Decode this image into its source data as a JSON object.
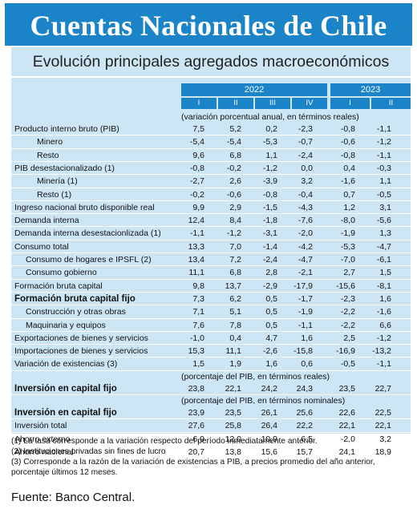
{
  "title": "Cuentas Nacionales de Chile",
  "subtitle": "Evolución principales agregados macroeconómicos",
  "years": [
    {
      "label": "2022",
      "quarters": [
        "I",
        "II",
        "III",
        "IV"
      ]
    },
    {
      "label": "2023",
      "quarters": [
        "I",
        "II"
      ]
    }
  ],
  "sections": [
    {
      "unit": "(variación porcentual anual, en términos reales)",
      "rows": [
        {
          "label": "Producto interno bruto (PIB)",
          "indent": 0,
          "bold": false,
          "values": [
            "7,5",
            "5,2",
            "0,2",
            "-2,3",
            "-0,8",
            "-1,1"
          ]
        },
        {
          "label": "Minero",
          "indent": 2,
          "bold": false,
          "values": [
            "-5,4",
            "-5,4",
            "-5,3",
            "-0,7",
            "-0,6",
            "-1,2"
          ]
        },
        {
          "label": "Resto",
          "indent": 2,
          "bold": false,
          "values": [
            "9,6",
            "6,8",
            "1,1",
            "-2,4",
            "-0,8",
            "-1,1"
          ]
        },
        {
          "label": "PIB desestacionalizado (1)",
          "indent": 0,
          "bold": false,
          "values": [
            "-0,8",
            "-0,2",
            "-1,2",
            "0,0",
            "0,4",
            "-0,3"
          ]
        },
        {
          "label": "Minería (1)",
          "indent": 2,
          "bold": false,
          "values": [
            "-2,7",
            "2,6",
            "-3,9",
            "3,2",
            "-1,6",
            "1,1"
          ]
        },
        {
          "label": "Resto (1)",
          "indent": 2,
          "bold": false,
          "values": [
            "-0,2",
            "-0,6",
            "-0,8",
            "-0,4",
            "0,7",
            "-0,5"
          ]
        },
        {
          "label": "Ingreso nacional bruto disponible real",
          "indent": 0,
          "bold": false,
          "values": [
            "9,9",
            "2,9",
            "-1,5",
            "-4,3",
            "1,2",
            "3,1"
          ]
        },
        {
          "label": "Demanda interna",
          "indent": 0,
          "bold": false,
          "values": [
            "12,4",
            "8,4",
            "-1,8",
            "-7,6",
            "-8,0",
            "-5,6"
          ]
        },
        {
          "label": "Demanda interna desestacionlizada (1)",
          "indent": 0,
          "bold": false,
          "values": [
            "-1,1",
            "-1,2",
            "-3,1",
            "-2,0",
            "-1,9",
            "1,3"
          ]
        },
        {
          "label": "Consumo total",
          "indent": 0,
          "bold": false,
          "values": [
            "13,3",
            "7,0",
            "-1,4",
            "-4,2",
            "-5,3",
            "-4,7"
          ]
        },
        {
          "label": "Consumo de hogares e IPSFL (2)",
          "indent": 1,
          "bold": false,
          "values": [
            "13,4",
            "7,2",
            "-2,4",
            "-4,7",
            "-7,0",
            "-6,1"
          ]
        },
        {
          "label": "Consumo gobierno",
          "indent": 1,
          "bold": false,
          "values": [
            "11,1",
            "6,8",
            "2,8",
            "-2,1",
            "2,7",
            "1,5"
          ]
        },
        {
          "label": "Formación bruta capital",
          "indent": 0,
          "bold": false,
          "values": [
            "9,8",
            "13,7",
            "-2,9",
            "-17,9",
            "-15,6",
            "-8,1"
          ]
        },
        {
          "label": "Formación bruta capital fijo",
          "indent": 0,
          "bold": true,
          "values": [
            "7,3",
            "6,2",
            "0,5",
            "-1,7",
            "-2,3",
            "1,6"
          ]
        },
        {
          "label": "Construcción y otras obras",
          "indent": 1,
          "bold": false,
          "values": [
            "7,1",
            "5,1",
            "0,5",
            "-1,9",
            "-2,2",
            "-1,6"
          ]
        },
        {
          "label": "Maquinaria y equipos",
          "indent": 1,
          "bold": false,
          "values": [
            "7,6",
            "7,8",
            "0,5",
            "-1,1",
            "-2,2",
            "6,6"
          ]
        },
        {
          "label": "Exportaciones de bienes y servicios",
          "indent": 0,
          "bold": false,
          "values": [
            "-1,0",
            "0,4",
            "4,7",
            "1,6",
            "2,5",
            "-1,2"
          ]
        },
        {
          "label": "Importaciones de bienes y servicios",
          "indent": 0,
          "bold": false,
          "values": [
            "15,3",
            "11,1",
            "-2,6",
            "-15,8",
            "-16,9",
            "-13,2"
          ]
        },
        {
          "label": "Variación de existencias (3)",
          "indent": 0,
          "bold": false,
          "values": [
            "1,5",
            "1,9",
            "1,6",
            "0,6",
            "-0,5",
            "-1,1"
          ]
        }
      ]
    },
    {
      "unit": "(porcentaje del PIB, en términos reales)",
      "rows": [
        {
          "label": "Inversión en capital fijo",
          "indent": 0,
          "bold": true,
          "values": [
            "23,8",
            "22,1",
            "24,2",
            "24,3",
            "23,5",
            "22,7"
          ]
        }
      ]
    },
    {
      "unit": "(porcentaje del PIB, en términos nominales)",
      "rows": [
        {
          "label": "Inversión en capital fijo",
          "indent": 0,
          "bold": true,
          "values": [
            "23,9",
            "23,5",
            "26,1",
            "25,6",
            "22,6",
            "22,5"
          ]
        },
        {
          "label": "Inversión total",
          "indent": 0,
          "bold": false,
          "values": [
            "27,6",
            "25,8",
            "26,4",
            "22,2",
            "22,1",
            "22,1"
          ]
        },
        {
          "label": "Ahorro externo",
          "indent": 0,
          "bold": false,
          "values": [
            "6,9",
            "12,0",
            "10,9",
            "6,5",
            "-2,0",
            "3,2"
          ]
        },
        {
          "label": "Ahorro nacional",
          "indent": 0,
          "bold": false,
          "values": [
            "20,7",
            "13,8",
            "15,6",
            "15,7",
            "24,1",
            "18,9"
          ]
        }
      ]
    }
  ],
  "footnotes": [
    "(1) La tasa corresponde a la variación respecto del período inmediatamente anterior.",
    "(2) Instituciones privadas sin fines de lucro",
    "(3) Corresponde a la razón de la variación de existencias a PIB, a precios promedio del año anterior,",
    "porcentaje últimos 12 meses."
  ],
  "source": "Fuente: Banco Central.",
  "colors": {
    "header_blue": "#1b83c8",
    "panel_light_blue": "#cce6f5"
  }
}
